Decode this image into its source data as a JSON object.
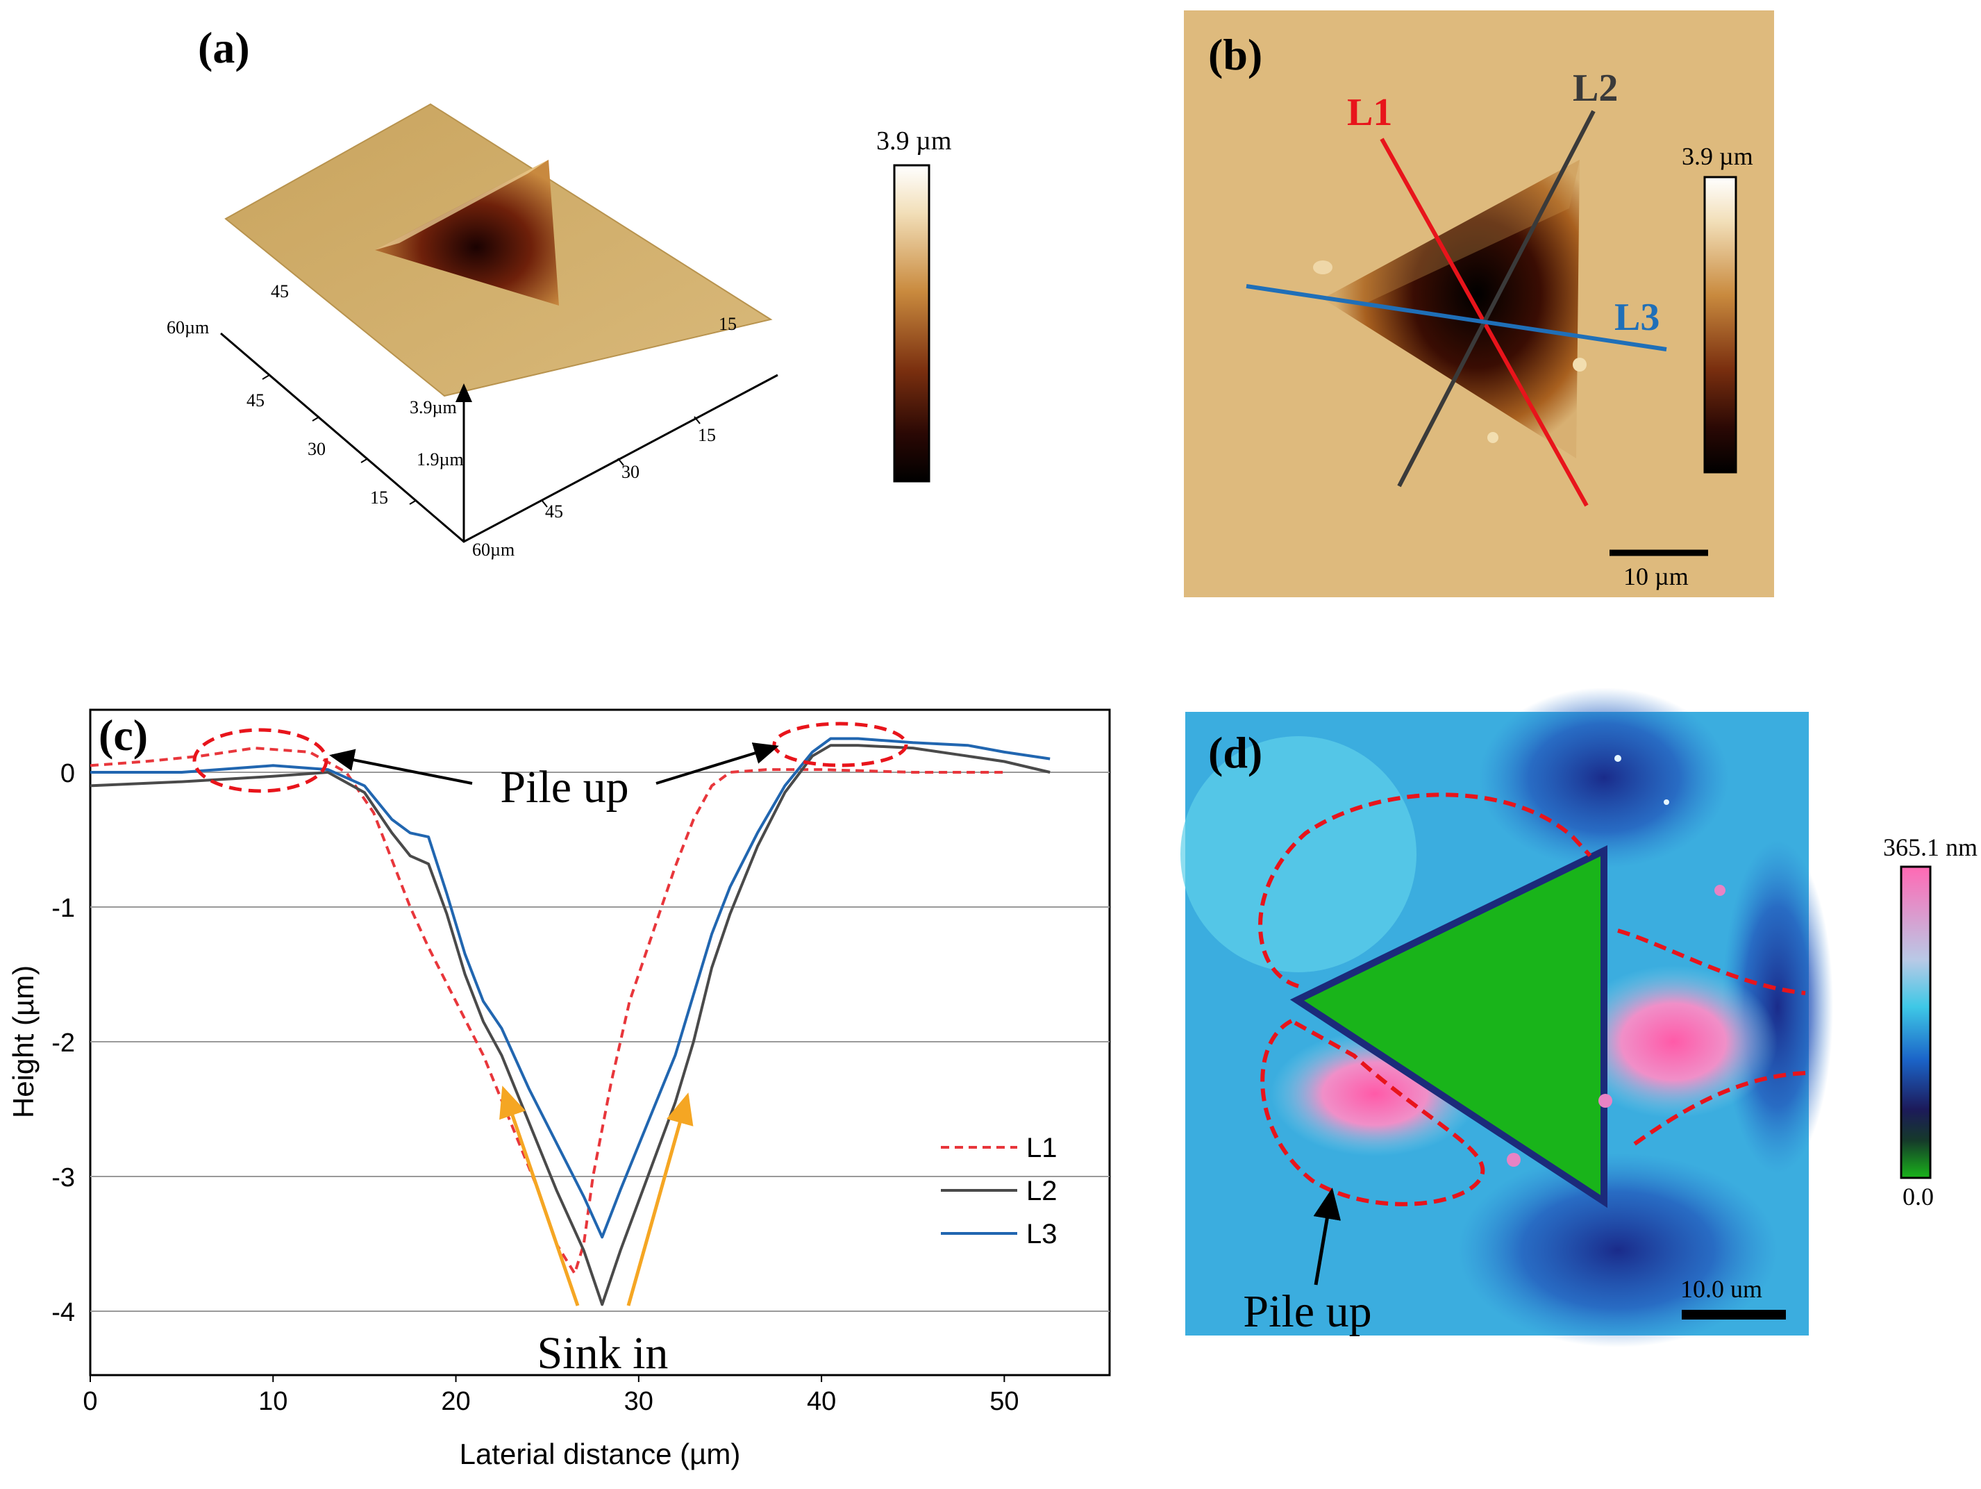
{
  "panels": {
    "a": {
      "label": "(a)",
      "colorbar_max": "3.9 µm",
      "axis_labels": {
        "corner_left": "60µm",
        "corner_bottom": "60µm",
        "z_top": "3.9µm",
        "z_mid": "1.9µm",
        "back_left_45": "45",
        "back_right_15": "15",
        "left_45": "45",
        "left_30": "30",
        "left_15": "15",
        "right_15": "15",
        "right_30": "30",
        "right_45": "45"
      }
    },
    "b": {
      "label": "(b)",
      "line_labels": {
        "l1": "L1",
        "l2": "L2",
        "l3": "L3"
      },
      "line_colors": {
        "l1": "#e8141b",
        "l2": "#3a3a3a",
        "l3": "#1f6fb8"
      },
      "colorbar_max": "3.9 µm",
      "scale_bar": "10 µm"
    },
    "d": {
      "label": "(d)",
      "colorbar_max": "365.1 nm",
      "colorbar_min": "0.0",
      "scale_bar": "10.0 um",
      "pile_up_label": "Pile up"
    }
  },
  "chart_data": {
    "type": "line",
    "panel_label": "(c)",
    "title": "",
    "xlabel": "Laterial distance (µm)",
    "ylabel": "Height (µm)",
    "xlim": [
      0,
      55
    ],
    "ylim": [
      -4.5,
      0.5
    ],
    "xticks": [
      0,
      10,
      20,
      30,
      40,
      50
    ],
    "yticks": [
      0,
      -1,
      -2,
      -3,
      -4
    ],
    "grid": "horizontal",
    "legend": "bottom-right",
    "annotations": {
      "pile_up": "Pile up",
      "sink_in": "Sink in"
    },
    "series": [
      {
        "name": "L1",
        "color": "#e8363b",
        "style": "dashed",
        "x": [
          0,
          3,
          6,
          9,
          12,
          14,
          15.5,
          16.5,
          17.5,
          18.5,
          20,
          21.5,
          23,
          24.5,
          25.5,
          26.5,
          27,
          27.5,
          28.5,
          29.5,
          31,
          32,
          33,
          34,
          35,
          37,
          40,
          45,
          50
        ],
        "y": [
          0.05,
          0.08,
          0.12,
          0.18,
          0.15,
          0.0,
          -0.3,
          -0.65,
          -1.0,
          -1.3,
          -1.7,
          -2.1,
          -2.6,
          -3.1,
          -3.5,
          -3.72,
          -3.5,
          -3.0,
          -2.3,
          -1.7,
          -1.1,
          -0.7,
          -0.35,
          -0.1,
          0.0,
          0.02,
          0.02,
          0.0,
          0.0
        ]
      },
      {
        "name": "L2",
        "color": "#4a4a4a",
        "style": "solid",
        "x": [
          0,
          5,
          10,
          13,
          15,
          16.5,
          17.5,
          18.5,
          19.5,
          20.5,
          21.5,
          22.5,
          24,
          25.5,
          27,
          28,
          29,
          30.5,
          32,
          33,
          34,
          35,
          36.5,
          38,
          39.5,
          40.5,
          42,
          45,
          48,
          50,
          52.5
        ],
        "y": [
          -0.1,
          -0.07,
          -0.03,
          0.0,
          -0.15,
          -0.45,
          -0.62,
          -0.68,
          -1.05,
          -1.5,
          -1.85,
          -2.1,
          -2.6,
          -3.1,
          -3.55,
          -3.95,
          -3.55,
          -3.0,
          -2.45,
          -2.0,
          -1.45,
          -1.05,
          -0.55,
          -0.15,
          0.12,
          0.2,
          0.2,
          0.18,
          0.12,
          0.08,
          0.0
        ]
      },
      {
        "name": "L3",
        "color": "#2166b0",
        "style": "solid",
        "x": [
          0,
          5,
          10,
          13,
          15,
          16.5,
          17.5,
          18.5,
          19.5,
          20.5,
          21.5,
          22.5,
          24,
          25.5,
          27,
          28,
          29,
          30.5,
          32,
          33,
          34,
          35,
          36.5,
          38,
          39.5,
          40.5,
          42,
          45,
          48,
          50,
          52.5
        ],
        "y": [
          0.0,
          0.0,
          0.05,
          0.02,
          -0.1,
          -0.35,
          -0.45,
          -0.48,
          -0.9,
          -1.35,
          -1.7,
          -1.9,
          -2.35,
          -2.75,
          -3.15,
          -3.45,
          -3.1,
          -2.6,
          -2.1,
          -1.65,
          -1.2,
          -0.85,
          -0.45,
          -0.1,
          0.15,
          0.25,
          0.25,
          0.22,
          0.2,
          0.15,
          0.1
        ]
      }
    ]
  }
}
